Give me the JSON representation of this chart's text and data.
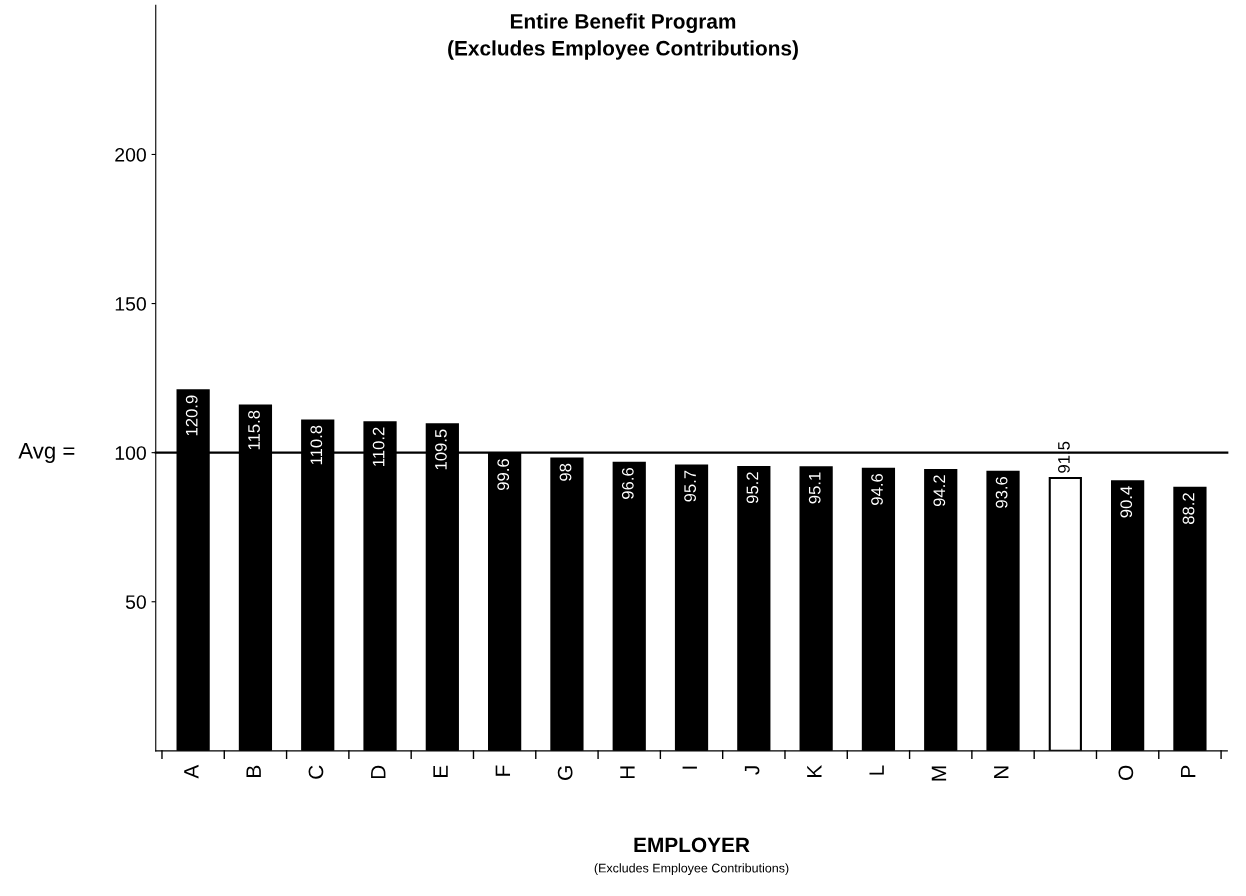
{
  "chart_data": {
    "type": "bar",
    "title": "Entire Benefit Program",
    "subtitle": "(Excludes Employee Contributions)",
    "xlabel": "EMPLOYER",
    "annotations": [
      "(Excludes Employee Contributions)"
    ],
    "categories": [
      "A",
      "B",
      "C",
      "D",
      "E",
      "F",
      "G",
      "H",
      "I",
      "J",
      "K",
      "L",
      "M",
      "N",
      null,
      "O",
      "P"
    ],
    "values": [
      120.9,
      115.8,
      110.8,
      110.2,
      109.5,
      99.6,
      98,
      96.6,
      95.7,
      95.2,
      95.1,
      94.6,
      94.2,
      93.6,
      91.5,
      90.4,
      88.2
    ],
    "colors": [
      "#000000",
      "#000000",
      "#000000",
      "#000000",
      "#000000",
      "#000000",
      "#000000",
      "#000000",
      "#000000",
      "#000000",
      "#000000",
      "#000000",
      "#000000",
      "#000000",
      "#ffffff",
      "#000000",
      "#000000"
    ],
    "ylim": [
      0,
      250
    ],
    "yticks": [
      50,
      100,
      150,
      200
    ],
    "ref_lines": [
      {
        "axis": "y",
        "value": 100,
        "label": "Avg =",
        "color": "#000000"
      }
    ],
    "data_labels": true,
    "grid": false,
    "legend": false
  }
}
